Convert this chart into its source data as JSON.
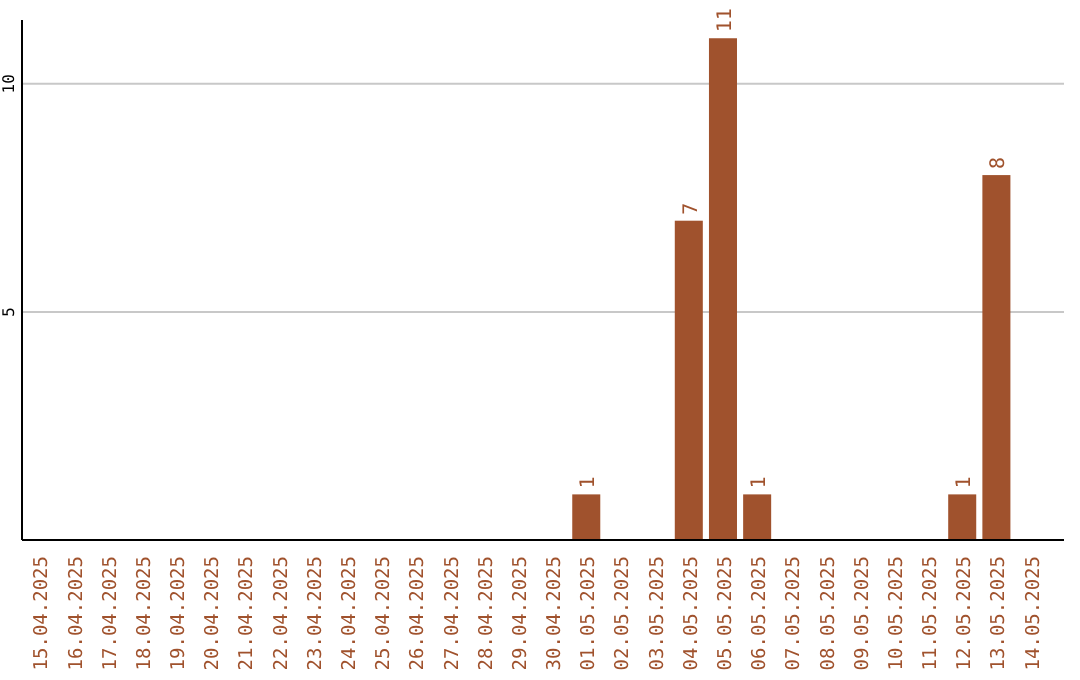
{
  "chart_data": {
    "type": "bar",
    "categories": [
      "15.04.2025",
      "16.04.2025",
      "17.04.2025",
      "18.04.2025",
      "19.04.2025",
      "20.04.2025",
      "21.04.2025",
      "22.04.2025",
      "23.04.2025",
      "24.04.2025",
      "25.04.2025",
      "26.04.2025",
      "27.04.2025",
      "28.04.2025",
      "29.04.2025",
      "30.04.2025",
      "01.05.2025",
      "02.05.2025",
      "03.05.2025",
      "04.05.2025",
      "05.05.2025",
      "06.05.2025",
      "07.05.2025",
      "08.05.2025",
      "09.05.2025",
      "10.05.2025",
      "11.05.2025",
      "12.05.2025",
      "13.05.2025",
      "14.05.2025"
    ],
    "values": [
      0,
      0,
      0,
      0,
      0,
      0,
      0,
      0,
      0,
      0,
      0,
      0,
      0,
      0,
      0,
      0,
      1,
      0,
      0,
      7,
      11,
      1,
      0,
      0,
      0,
      0,
      0,
      1,
      8,
      0
    ],
    "value_labels": [
      null,
      null,
      null,
      null,
      null,
      null,
      null,
      null,
      null,
      null,
      null,
      null,
      null,
      null,
      null,
      null,
      "1",
      null,
      null,
      "7",
      "11",
      "1",
      null,
      null,
      null,
      null,
      null,
      "1",
      "8",
      null
    ],
    "color": "#a0522d",
    "ylim": [
      0,
      11.4
    ],
    "yticks": [
      5,
      10
    ],
    "grid": "y"
  }
}
